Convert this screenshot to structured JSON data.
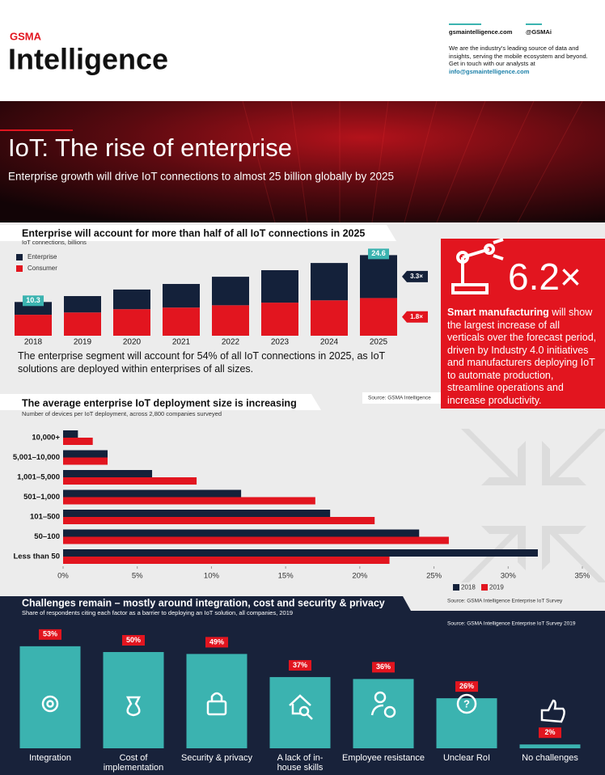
{
  "header": {
    "logo_small": "GSMA",
    "logo": "Intelligence",
    "website": "gsmaintelligence.com",
    "handle": "@GSMAi",
    "about": "We are the industry's leading source of data and insights, serving the mobile ecosystem and beyond.",
    "contact": "Get in touch with our analysts at",
    "email": "info@gsmaintelligence.com"
  },
  "hero": {
    "title": "IoT: The rise of enterprise",
    "subtitle": "Enterprise growth will drive IoT connections to almost 25 billion globally by 2025"
  },
  "chart_data": [
    {
      "type": "stacked-bar",
      "title": "Enterprise will account for more than half of all IoT connections in 2025",
      "subtitle": "IoT connections, billions",
      "categories": [
        "2018",
        "2019",
        "2020",
        "2021",
        "2022",
        "2023",
        "2024",
        "2025"
      ],
      "series": [
        {
          "name": "Enterprise",
          "color": "#14213a",
          "values": [
            3.9,
            5.0,
            6.0,
            7.2,
            8.7,
            9.9,
            11.4,
            13.1
          ],
          "growth": "3.3×"
        },
        {
          "name": "Consumer",
          "color": "#e2151f",
          "values": [
            6.4,
            7.1,
            8.1,
            8.6,
            9.3,
            10.1,
            10.8,
            11.5
          ],
          "growth": "1.8×"
        }
      ],
      "totals": [
        10.3,
        null,
        null,
        null,
        null,
        null,
        null,
        24.6
      ],
      "total_color": "#3bb3b0",
      "legend": "top-left",
      "note": "The enterprise segment will account for 54% of all IoT connections in 2025, as IoT solutions are deployed within enterprises of all sizes.",
      "source": "Source: GSMA Intelligence"
    },
    {
      "type": "horizontal-bar",
      "title": "The average enterprise IoT deployment size is increasing",
      "subtitle": "Number of devices per IoT deployment, across 2,800 companies surveyed",
      "categories": [
        "10,000+",
        "5,001–10,000",
        "1,001–5,000",
        "501–1,000",
        "101–500",
        "50–100",
        "Less than 50"
      ],
      "series": [
        {
          "name": "2018",
          "color": "#14213a",
          "values": [
            1,
            3,
            6,
            12,
            18,
            24,
            32
          ]
        },
        {
          "name": "2019",
          "color": "#e2151f",
          "values": [
            2,
            3,
            9,
            17,
            21,
            26,
            22
          ]
        }
      ],
      "xlim": [
        0,
        35
      ],
      "xticks": [
        {
          "value": 0,
          "label": "0%"
        },
        {
          "value": 5,
          "label": "5%"
        },
        {
          "value": 10,
          "label": "10%"
        },
        {
          "value": 15,
          "label": "15%"
        },
        {
          "value": 20,
          "label": "20%"
        },
        {
          "value": 25,
          "label": "25%"
        },
        {
          "value": 30,
          "label": "30%"
        },
        {
          "value": 35,
          "label": "35%"
        }
      ],
      "legend": "bottom-right",
      "source": "Source: GSMA Intelligence Enterprise IoT Survey"
    },
    {
      "type": "bar",
      "title": "Challenges remain – mostly around integration, cost and security & privacy",
      "subtitle": "Share of respondents citing each factor as a barrier to deploying an IoT solution, all companies, 2019",
      "categories": [
        "Integration",
        "Cost of implementation",
        "Security & privacy",
        "A lack of in-house skills",
        "Employee resistance",
        "Unclear RoI",
        "No challenges"
      ],
      "values": [
        53,
        50,
        49,
        37,
        36,
        26,
        2
      ],
      "value_labels": [
        "53%",
        "50%",
        "49%",
        "37%",
        "36%",
        "26%",
        "2%"
      ],
      "color": "#3bb3b0",
      "label_color": "#e2151f",
      "source": "Source: GSMA Intelligence Enterprise IoT Survey 2019"
    }
  ],
  "callout": {
    "figure": "6.2×",
    "highlight": "Smart manufacturing",
    "text": "will show the largest increase of all verticals over the forecast period, driven by Industry 4.0 initiatives and manufacturers deploying IoT to automate production, streamline operations and increase productivity."
  }
}
